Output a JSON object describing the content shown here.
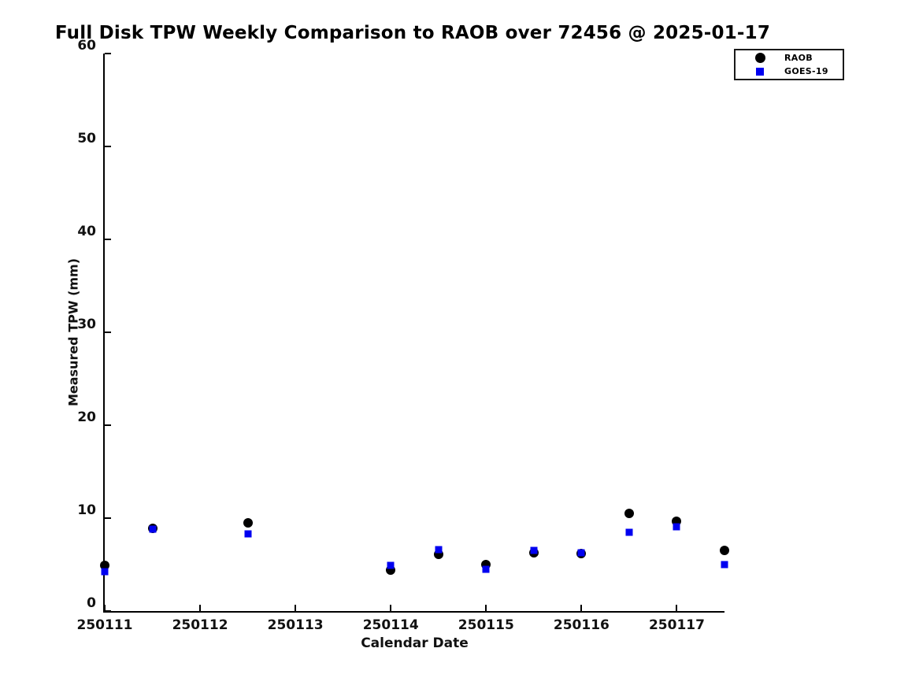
{
  "figure": {
    "background_color": "#ffffff",
    "axis_color": "#000000"
  },
  "chart_data": {
    "type": "scatter",
    "title": "Full Disk TPW Weekly Comparison to RAOB over 72456 @ 2025-01-17",
    "xlabel": "Calendar Date",
    "ylabel": "Measured TPW (mm)",
    "xlim": [
      250111,
      250117.5
    ],
    "ylim": [
      0,
      60
    ],
    "xticks": [
      250111,
      250112,
      250113,
      250114,
      250115,
      250116,
      250117
    ],
    "xticklabels": [
      "250111",
      "250112",
      "250113",
      "250114",
      "250115",
      "250116",
      "250117"
    ],
    "yticks": [
      0,
      10,
      20,
      30,
      40,
      50,
      60
    ],
    "yticklabels": [
      "0",
      "10",
      "20",
      "30",
      "40",
      "50",
      "60"
    ],
    "grid": false,
    "legend_position": "outside-top-right",
    "x": [
      250111,
      250111.5,
      250112.5,
      250114,
      250114.5,
      250115,
      250115.5,
      250116,
      250116.5,
      250117,
      250117.5
    ],
    "series": [
      {
        "name": "RAOB",
        "marker": "circle",
        "color": "#000000",
        "values": [
          4.9,
          8.9,
          9.5,
          4.4,
          6.1,
          5.0,
          6.3,
          6.2,
          10.5,
          9.7,
          6.5
        ]
      },
      {
        "name": "GOES-19",
        "marker": "square",
        "color": "#0000f0",
        "values": [
          4.2,
          8.8,
          8.3,
          4.9,
          6.6,
          4.5,
          6.5,
          6.3,
          8.5,
          9.1,
          5.0
        ]
      }
    ]
  }
}
